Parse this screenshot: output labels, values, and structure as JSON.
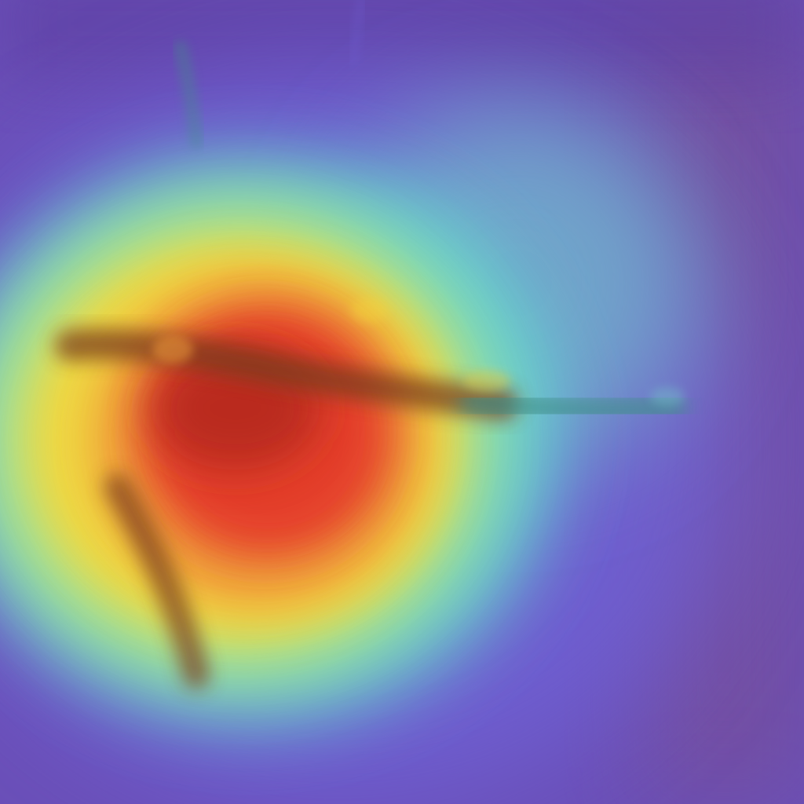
{
  "heatmap": {
    "colors": {
      "background_violet": "#6a4fb8",
      "background_deep_purple": "#5b3d9e",
      "edge_mauve": "#7a4f90",
      "blue_band": "#6f63d8",
      "cyan_band": "#63d6d0",
      "teal_band": "#72c9c8",
      "green_yellow_band": "#c9e66e",
      "yellow_band": "#f3d53e",
      "orange_band": "#ef9a3a",
      "red_core": "#e43b2c",
      "dark_red_core": "#b0281c",
      "dark_streak": "#7a3c1a",
      "teal_streak": "#3f8f88"
    },
    "features": [
      "diffuse-glow",
      "hotspot-core",
      "horizontal-streak",
      "lower-vertical-streak",
      "faint-top-streaks"
    ]
  }
}
